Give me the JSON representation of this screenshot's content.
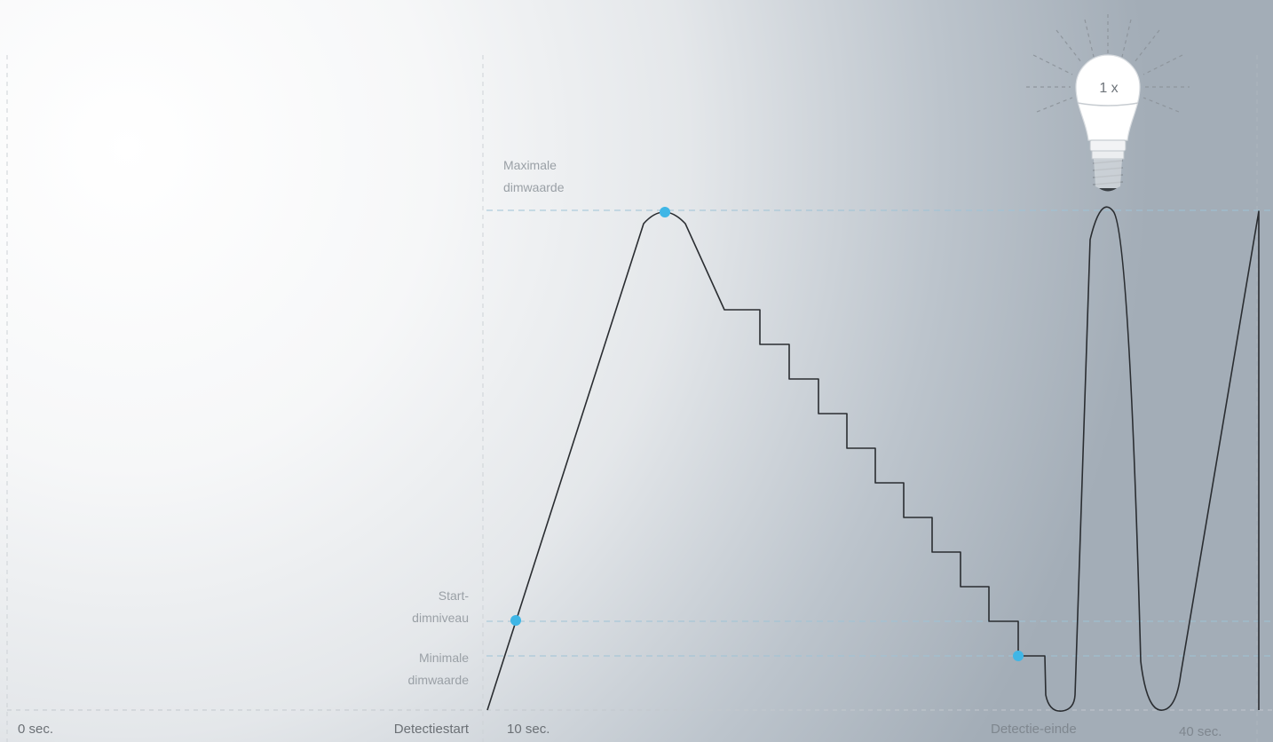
{
  "labels": {
    "max": [
      "Maximale",
      "dimwaarde"
    ],
    "start": [
      "Start-",
      "dimniveau"
    ],
    "min": [
      "Minimale",
      "dimwaarde"
    ],
    "bulb_badge": "1 x"
  },
  "timeline": {
    "t0": "0 sec.",
    "detection_start": "Detectiestart",
    "t10": "10 sec.",
    "detection_end": "Detectie-einde",
    "t40": "40 sec."
  },
  "colors": {
    "curve": "#2a2d31",
    "marker": "#3fb6e6",
    "guide": "#9cc3d8",
    "grid": "#c9ced3"
  },
  "icons": [
    "light-bulb-icon"
  ]
}
